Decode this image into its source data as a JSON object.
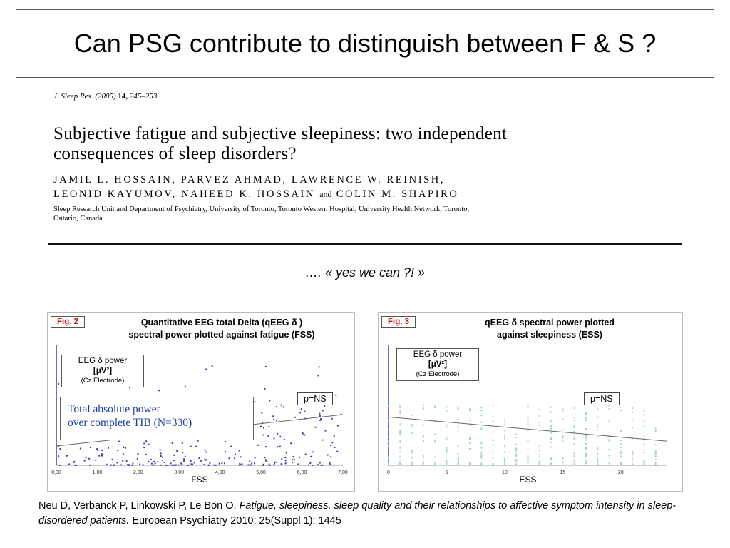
{
  "slide": {
    "title": "Can PSG contribute to distinguish between F & S ?",
    "quote": "…. « yes we can ?! »"
  },
  "paper": {
    "journal": "J. Sleep Res.",
    "year": "(2005)",
    "volume": "14,",
    "pages": "245–253",
    "title_line1": "Subjective fatigue and subjective sleepiness: two independent",
    "title_line2": "consequences of sleep disorders?",
    "authors_line1": "JAMIL L. HOSSAIN, PARVEZ AHMAD, LAWRENCE W. REINISH,",
    "authors_line2_a": "LEONID KAYUMOV, NAHEED K. HOSSAIN",
    "authors_and": "and",
    "authors_line2_b": "COLIN M. SHAPIRO",
    "affiliation_line1": "Sleep Research Unit and Department of Psychiatry, University of Toronto, Toronto Western Hospital, University Health Network, Toronto,",
    "affiliation_line2": "Ontario, Canada"
  },
  "overlay": {
    "line1": "Total absolute power",
    "line2": "over complete TIB (N=330)"
  },
  "citation": {
    "authors": "Neu D, Verbanck P, Linkowski P, Le Bon O.",
    "title": "Fatigue, sleepiness, sleep quality and their relationships to affective symptom intensity in sleep-disordered patients.",
    "source": "European Psychiatry 2010; 25(Suppl 1): 1445"
  },
  "chart_data": [
    {
      "type": "scatter",
      "fig_label": "Fig. 2",
      "title_line1": "Quantitative EEG total Delta (qEEG δ )",
      "title_line2": "spectral power plotted against fatigue (FSS)",
      "ylabel_line1": "EEG δ power",
      "ylabel_line2": "[μV²]",
      "ylabel_line3": "(Cz Electrode)",
      "xlabel": "FSS",
      "annotation": "p=NS",
      "xlim": [
        0,
        7
      ],
      "xticks": [
        "0,00",
        "1,00",
        "2,00",
        "3,00",
        "4,00",
        "5,00",
        "6,00",
        "7,00"
      ],
      "point_color": "#3a3fb0",
      "trend": {
        "x": [
          0,
          7
        ],
        "y": [
          0.16,
          0.42
        ]
      }
    },
    {
      "type": "scatter",
      "fig_label": "Fig. 3",
      "title_line1": "qEEG δ spectral power plotted",
      "title_line2": "against sleepiness (ESS)",
      "ylabel_line1": "EEG δ power",
      "ylabel_line2": "[μV²]",
      "ylabel_line3": "(Cz Electrode)",
      "xlabel": "ESS",
      "annotation": "p=NS",
      "xlim": [
        0,
        24
      ],
      "xticks": [
        "0",
        "5",
        "10",
        "15",
        "20"
      ],
      "xtick_values": [
        0,
        5,
        10,
        15,
        20
      ],
      "point_color": "#9fd4d0",
      "trend": {
        "x": [
          0,
          24
        ],
        "y": [
          0.4,
          0.2
        ]
      }
    }
  ]
}
